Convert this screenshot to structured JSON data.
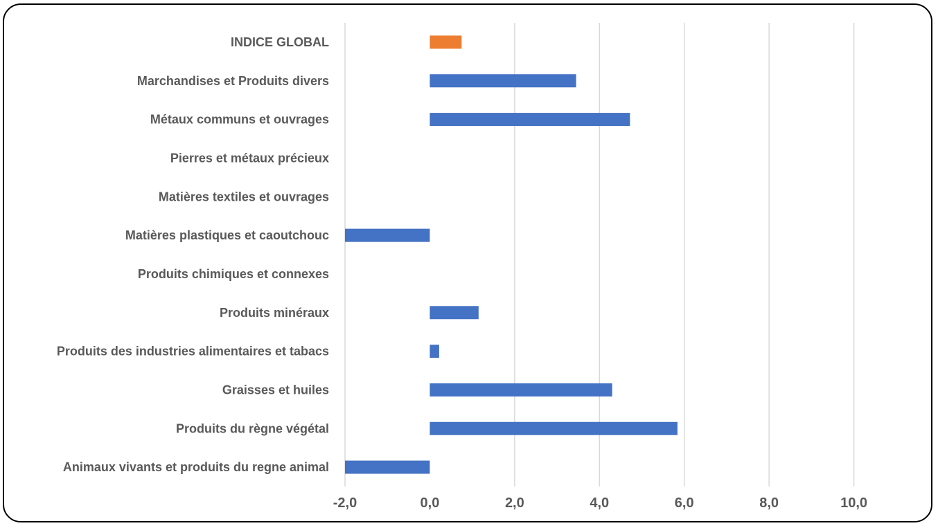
{
  "chart_data": {
    "type": "bar",
    "orientation": "horizontal",
    "title": "",
    "xlabel": "",
    "ylabel": "",
    "xlim": [
      -2,
      12
    ],
    "xticks": [
      -2,
      0,
      2,
      4,
      6,
      8,
      10
    ],
    "tick_labels": [
      "-2,0",
      "0,0",
      "2,0",
      "4,0",
      "6,0",
      "8,0",
      "10,0"
    ],
    "grid": true,
    "legend": "none",
    "categories": [
      "INDICE GLOBAL",
      "Marchandises et Produits divers",
      "Métaux communs et ouvrages",
      "Pierres et métaux précieux",
      "Matières textiles et ouvrages",
      "Matières plastiques et caoutchouc",
      "Produits chimiques et connexes",
      "Produits minéraux",
      "Produits des industries alimentaires et tabacs",
      "Graisses et huiles",
      "Produits du règne végétal",
      "Animaux vivants et produits du regne animal"
    ],
    "values": [
      0.75,
      3.45,
      4.72,
      0,
      0,
      -2.0,
      0,
      1.15,
      0.22,
      4.3,
      5.84,
      -2.0
    ],
    "colors": {
      "global": "#ed7d31",
      "default": "#4472c4",
      "grid": "#d9d9d9",
      "text": "#595959"
    }
  }
}
